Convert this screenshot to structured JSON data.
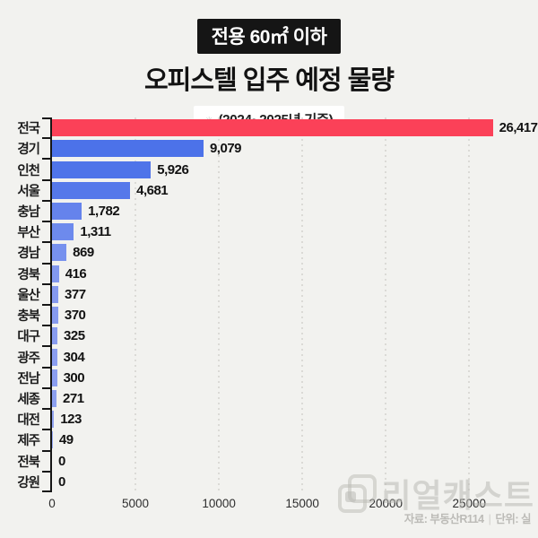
{
  "header": {
    "badge": "전용 60㎡ 이하",
    "title": "오피스텔 입주 예정 물량",
    "subtitle_marker": "✳",
    "subtitle": "(2024~2025년 기준)"
  },
  "chart_data": {
    "type": "bar",
    "orientation": "horizontal",
    "title": "오피스텔 입주 예정 물량 (전용 60㎡ 이하, 2024~2025년 기준)",
    "categories": [
      "전국",
      "경기",
      "인천",
      "서울",
      "충남",
      "부산",
      "경남",
      "경북",
      "울산",
      "충북",
      "대구",
      "광주",
      "전남",
      "세종",
      "대전",
      "제주",
      "전북",
      "강원"
    ],
    "values": [
      26417,
      9079,
      5926,
      4681,
      1782,
      1311,
      869,
      416,
      377,
      370,
      325,
      304,
      300,
      271,
      123,
      49,
      0,
      0
    ],
    "bar_colors": [
      "#FB4158",
      "#4C72E9",
      "#4F74E9",
      "#5578EA",
      "#6583EC",
      "#6D8AED",
      "#7791EE",
      "#8298EF",
      "#8599EF",
      "#869AEF",
      "#889CF0",
      "#8A9DF0",
      "#8B9EF0",
      "#8CA0F0",
      "#92A4F1",
      "#96A8F1",
      "#96A8F1",
      "#96A8F1"
    ],
    "x_ticks": [
      0,
      5000,
      10000,
      15000,
      20000,
      25000
    ],
    "xlim": [
      0,
      28800
    ],
    "grid": "dotted-vertical",
    "legend": "none",
    "value_labels": true,
    "highlight_category": "전국",
    "highlight_color": "#FB4158",
    "regional_color_range": [
      "#4C72E9",
      "#96A8F1"
    ]
  },
  "footer": {
    "watermark": "리얼캐스트",
    "source": "자료: 부동산R114",
    "divider": "|",
    "unit": "단위: 실"
  }
}
